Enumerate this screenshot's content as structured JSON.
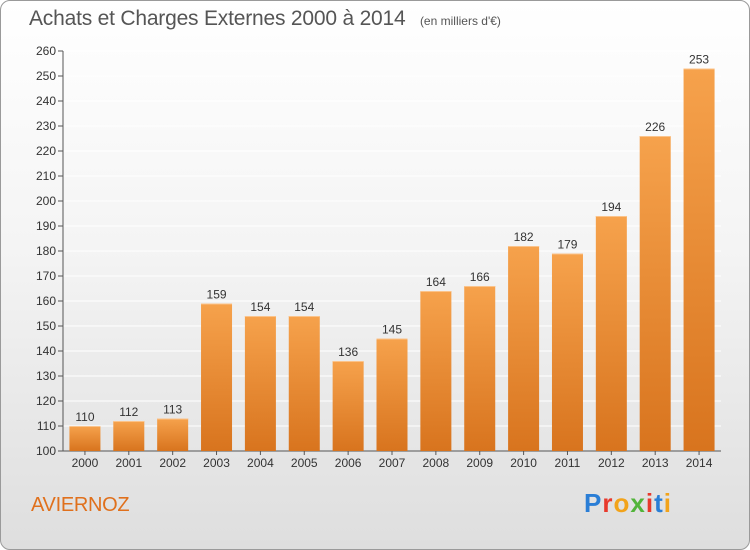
{
  "header": {
    "title": "Achats et Charges Externes 2000 à 2014",
    "unit": "(en milliers d'€)"
  },
  "footer": {
    "place": "AVIERNOZ",
    "logo": "Proxiti"
  },
  "colors": {
    "bar_light": "#f6a24c",
    "bar_dark": "#d8741e",
    "place_text": "#e0701c",
    "axis": "#555555",
    "grid": "#ffffff"
  },
  "chart_data": {
    "type": "bar",
    "categories": [
      "2000",
      "2001",
      "2002",
      "2003",
      "2004",
      "2005",
      "2006",
      "2007",
      "2008",
      "2009",
      "2010",
      "2011",
      "2012",
      "2013",
      "2014"
    ],
    "values": [
      110,
      112,
      113,
      159,
      154,
      154,
      136,
      145,
      164,
      166,
      182,
      179,
      194,
      226,
      253
    ],
    "ylim": [
      100,
      260
    ],
    "yticks": [
      100,
      110,
      120,
      130,
      140,
      150,
      160,
      170,
      180,
      190,
      200,
      210,
      220,
      230,
      240,
      250,
      260
    ],
    "grid": true,
    "data_labels": true
  }
}
